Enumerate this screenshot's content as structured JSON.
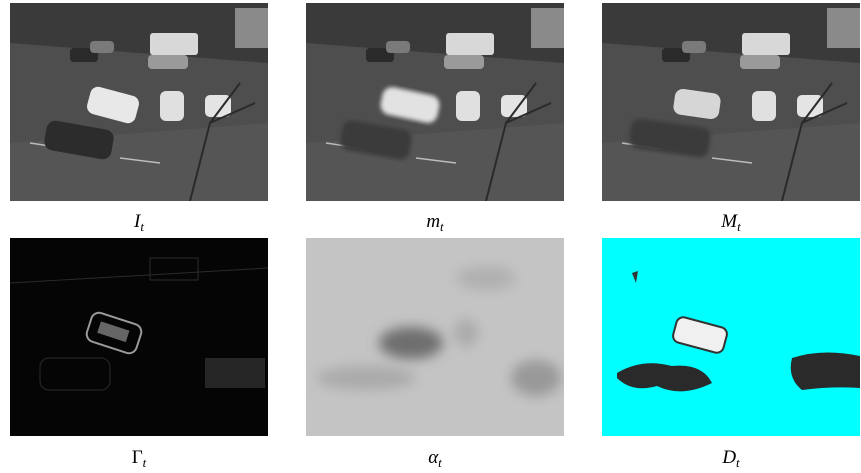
{
  "figure": {
    "panels": [
      {
        "symbol": "I",
        "subscript": "t"
      },
      {
        "symbol": "m",
        "subscript": "t"
      },
      {
        "symbol": "M",
        "subscript": "t"
      },
      {
        "symbol": "Γ",
        "subscript": "t"
      },
      {
        "symbol": "α",
        "subscript": "t"
      },
      {
        "symbol": "D",
        "subscript": "t"
      }
    ]
  }
}
